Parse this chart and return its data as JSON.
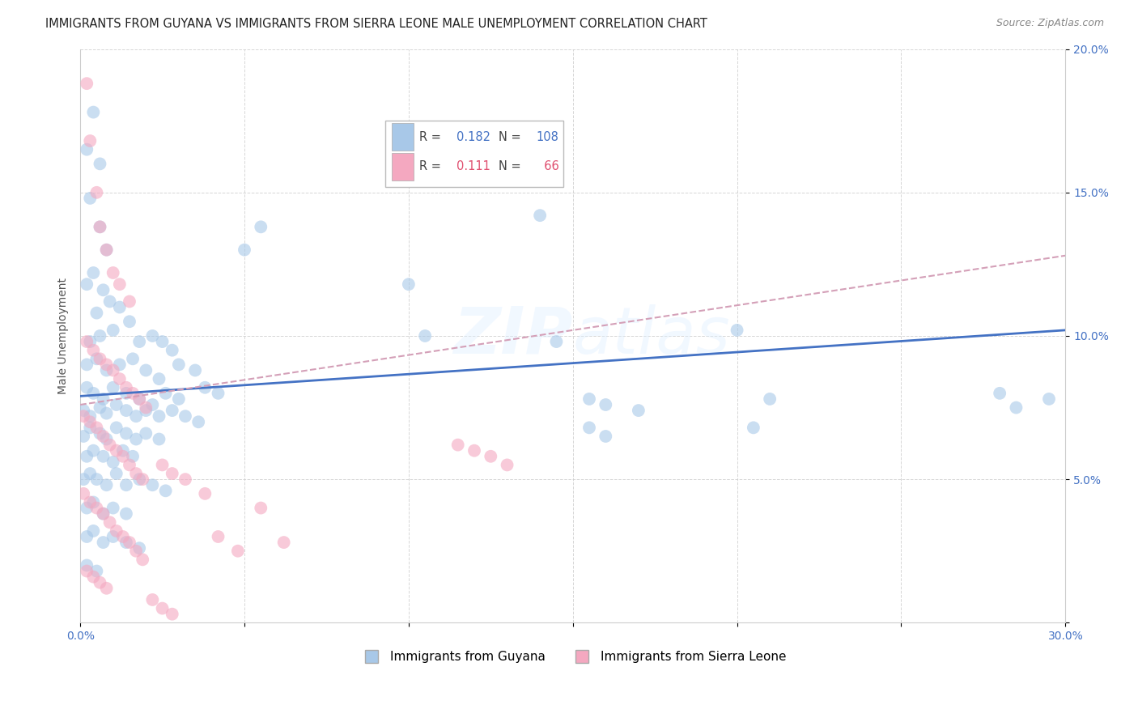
{
  "title": "IMMIGRANTS FROM GUYANA VS IMMIGRANTS FROM SIERRA LEONE MALE UNEMPLOYMENT CORRELATION CHART",
  "source": "Source: ZipAtlas.com",
  "ylabel": "Male Unemployment",
  "watermark": "ZIPatlas",
  "xlim": [
    0.0,
    0.3
  ],
  "ylim": [
    0.0,
    0.2
  ],
  "xticks": [
    0.0,
    0.05,
    0.1,
    0.15,
    0.2,
    0.25,
    0.3
  ],
  "yticks": [
    0.0,
    0.05,
    0.1,
    0.15,
    0.2
  ],
  "guyana_color": "#a8c8e8",
  "sierra_color": "#f4a8c0",
  "guyana_line_color": "#4472c4",
  "sierra_line_color": "#d4a0b8",
  "background_color": "#ffffff",
  "grid_color": "#cccccc",
  "legend_r_color_guyana": "#4472c4",
  "legend_r_color_sierra": "#e05070",
  "legend_n_color_guyana": "#4472c4",
  "legend_n_color_sierra": "#e05070",
  "guyana_scatter": [
    [
      0.002,
      0.165
    ],
    [
      0.004,
      0.178
    ],
    [
      0.006,
      0.16
    ],
    [
      0.003,
      0.148
    ],
    [
      0.006,
      0.138
    ],
    [
      0.008,
      0.13
    ],
    [
      0.002,
      0.118
    ],
    [
      0.004,
      0.122
    ],
    [
      0.007,
      0.116
    ],
    [
      0.005,
      0.108
    ],
    [
      0.009,
      0.112
    ],
    [
      0.012,
      0.11
    ],
    [
      0.003,
      0.098
    ],
    [
      0.006,
      0.1
    ],
    [
      0.01,
      0.102
    ],
    [
      0.015,
      0.105
    ],
    [
      0.018,
      0.098
    ],
    [
      0.022,
      0.1
    ],
    [
      0.025,
      0.098
    ],
    [
      0.028,
      0.095
    ],
    [
      0.002,
      0.09
    ],
    [
      0.005,
      0.092
    ],
    [
      0.008,
      0.088
    ],
    [
      0.012,
      0.09
    ],
    [
      0.016,
      0.092
    ],
    [
      0.02,
      0.088
    ],
    [
      0.024,
      0.085
    ],
    [
      0.03,
      0.09
    ],
    [
      0.035,
      0.088
    ],
    [
      0.002,
      0.082
    ],
    [
      0.004,
      0.08
    ],
    [
      0.007,
      0.078
    ],
    [
      0.01,
      0.082
    ],
    [
      0.014,
      0.08
    ],
    [
      0.018,
      0.078
    ],
    [
      0.022,
      0.076
    ],
    [
      0.026,
      0.08
    ],
    [
      0.03,
      0.078
    ],
    [
      0.038,
      0.082
    ],
    [
      0.042,
      0.08
    ],
    [
      0.001,
      0.074
    ],
    [
      0.003,
      0.072
    ],
    [
      0.006,
      0.075
    ],
    [
      0.008,
      0.073
    ],
    [
      0.011,
      0.076
    ],
    [
      0.014,
      0.074
    ],
    [
      0.017,
      0.072
    ],
    [
      0.02,
      0.074
    ],
    [
      0.024,
      0.072
    ],
    [
      0.028,
      0.074
    ],
    [
      0.032,
      0.072
    ],
    [
      0.036,
      0.07
    ],
    [
      0.001,
      0.065
    ],
    [
      0.003,
      0.068
    ],
    [
      0.006,
      0.066
    ],
    [
      0.008,
      0.064
    ],
    [
      0.011,
      0.068
    ],
    [
      0.014,
      0.066
    ],
    [
      0.017,
      0.064
    ],
    [
      0.02,
      0.066
    ],
    [
      0.024,
      0.064
    ],
    [
      0.002,
      0.058
    ],
    [
      0.004,
      0.06
    ],
    [
      0.007,
      0.058
    ],
    [
      0.01,
      0.056
    ],
    [
      0.013,
      0.06
    ],
    [
      0.016,
      0.058
    ],
    [
      0.001,
      0.05
    ],
    [
      0.003,
      0.052
    ],
    [
      0.005,
      0.05
    ],
    [
      0.008,
      0.048
    ],
    [
      0.011,
      0.052
    ],
    [
      0.014,
      0.048
    ],
    [
      0.018,
      0.05
    ],
    [
      0.022,
      0.048
    ],
    [
      0.026,
      0.046
    ],
    [
      0.002,
      0.04
    ],
    [
      0.004,
      0.042
    ],
    [
      0.007,
      0.038
    ],
    [
      0.01,
      0.04
    ],
    [
      0.014,
      0.038
    ],
    [
      0.002,
      0.03
    ],
    [
      0.004,
      0.032
    ],
    [
      0.007,
      0.028
    ],
    [
      0.01,
      0.03
    ],
    [
      0.014,
      0.028
    ],
    [
      0.018,
      0.026
    ],
    [
      0.002,
      0.02
    ],
    [
      0.005,
      0.018
    ],
    [
      0.05,
      0.13
    ],
    [
      0.055,
      0.138
    ],
    [
      0.1,
      0.118
    ],
    [
      0.105,
      0.1
    ],
    [
      0.14,
      0.142
    ],
    [
      0.145,
      0.098
    ],
    [
      0.155,
      0.068
    ],
    [
      0.16,
      0.065
    ],
    [
      0.2,
      0.102
    ],
    [
      0.21,
      0.078
    ],
    [
      0.205,
      0.068
    ],
    [
      0.155,
      0.078
    ],
    [
      0.16,
      0.076
    ],
    [
      0.17,
      0.074
    ],
    [
      0.28,
      0.08
    ],
    [
      0.285,
      0.075
    ],
    [
      0.295,
      0.078
    ]
  ],
  "sierra_scatter": [
    [
      0.002,
      0.188
    ],
    [
      0.003,
      0.168
    ],
    [
      0.005,
      0.15
    ],
    [
      0.006,
      0.138
    ],
    [
      0.008,
      0.13
    ],
    [
      0.01,
      0.122
    ],
    [
      0.012,
      0.118
    ],
    [
      0.015,
      0.112
    ],
    [
      0.002,
      0.098
    ],
    [
      0.004,
      0.095
    ],
    [
      0.006,
      0.092
    ],
    [
      0.008,
      0.09
    ],
    [
      0.01,
      0.088
    ],
    [
      0.012,
      0.085
    ],
    [
      0.014,
      0.082
    ],
    [
      0.016,
      0.08
    ],
    [
      0.018,
      0.078
    ],
    [
      0.02,
      0.075
    ],
    [
      0.001,
      0.072
    ],
    [
      0.003,
      0.07
    ],
    [
      0.005,
      0.068
    ],
    [
      0.007,
      0.065
    ],
    [
      0.009,
      0.062
    ],
    [
      0.011,
      0.06
    ],
    [
      0.013,
      0.058
    ],
    [
      0.015,
      0.055
    ],
    [
      0.017,
      0.052
    ],
    [
      0.019,
      0.05
    ],
    [
      0.001,
      0.045
    ],
    [
      0.003,
      0.042
    ],
    [
      0.005,
      0.04
    ],
    [
      0.007,
      0.038
    ],
    [
      0.009,
      0.035
    ],
    [
      0.011,
      0.032
    ],
    [
      0.013,
      0.03
    ],
    [
      0.015,
      0.028
    ],
    [
      0.017,
      0.025
    ],
    [
      0.019,
      0.022
    ],
    [
      0.002,
      0.018
    ],
    [
      0.004,
      0.016
    ],
    [
      0.006,
      0.014
    ],
    [
      0.008,
      0.012
    ],
    [
      0.025,
      0.055
    ],
    [
      0.028,
      0.052
    ],
    [
      0.032,
      0.05
    ],
    [
      0.038,
      0.045
    ],
    [
      0.042,
      0.03
    ],
    [
      0.048,
      0.025
    ],
    [
      0.055,
      0.04
    ],
    [
      0.062,
      0.028
    ],
    [
      0.115,
      0.062
    ],
    [
      0.12,
      0.06
    ],
    [
      0.125,
      0.058
    ],
    [
      0.13,
      0.055
    ],
    [
      0.022,
      0.008
    ],
    [
      0.025,
      0.005
    ],
    [
      0.028,
      0.003
    ]
  ],
  "guyana_trend": [
    0.0,
    0.079,
    0.3,
    0.102
  ],
  "sierra_trend": [
    0.0,
    0.076,
    0.3,
    0.128
  ]
}
